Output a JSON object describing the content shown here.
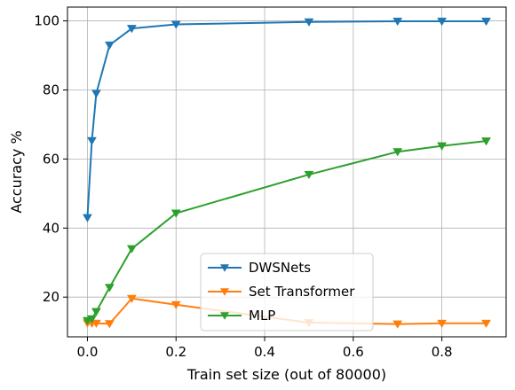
{
  "chart_data": {
    "type": "line",
    "xlabel": "Train set size (out of 80000)",
    "ylabel": "Accuracy %",
    "xlim": [
      -0.045,
      0.945
    ],
    "ylim": [
      8.5,
      104
    ],
    "xticks": [
      0.0,
      0.2,
      0.4,
      0.6,
      0.8
    ],
    "xtick_labels": [
      "0.0",
      "0.2",
      "0.4",
      "0.6",
      "0.8"
    ],
    "yticks": [
      20,
      40,
      60,
      80,
      100
    ],
    "ytick_labels": [
      "20",
      "40",
      "60",
      "80",
      "100"
    ],
    "grid": true,
    "legend_position": "bottom-center",
    "marker": "triangle-down",
    "series": [
      {
        "name": "DWSNets",
        "color": "#1f77b4",
        "x": [
          0.0,
          0.01,
          0.02,
          0.05,
          0.1,
          0.2,
          0.5,
          0.7,
          0.8,
          0.9
        ],
        "y": [
          43.0,
          65.3,
          79.0,
          93.0,
          97.8,
          99.0,
          99.7,
          99.9,
          99.9,
          99.9
        ]
      },
      {
        "name": "Set Transformer",
        "color": "#ff7f0e",
        "x": [
          0.0,
          0.01,
          0.02,
          0.05,
          0.1,
          0.2,
          0.5,
          0.7,
          0.8,
          0.9
        ],
        "y": [
          12.5,
          12.4,
          12.4,
          12.3,
          19.6,
          17.8,
          12.6,
          12.2,
          12.4,
          12.4
        ]
      },
      {
        "name": "MLP",
        "color": "#2ca02c",
        "x": [
          0.0,
          0.01,
          0.02,
          0.05,
          0.1,
          0.2,
          0.5,
          0.7,
          0.8,
          0.9
        ],
        "y": [
          13.2,
          13.7,
          15.8,
          22.8,
          34.0,
          44.3,
          55.5,
          62.1,
          63.8,
          65.2
        ]
      }
    ]
  }
}
